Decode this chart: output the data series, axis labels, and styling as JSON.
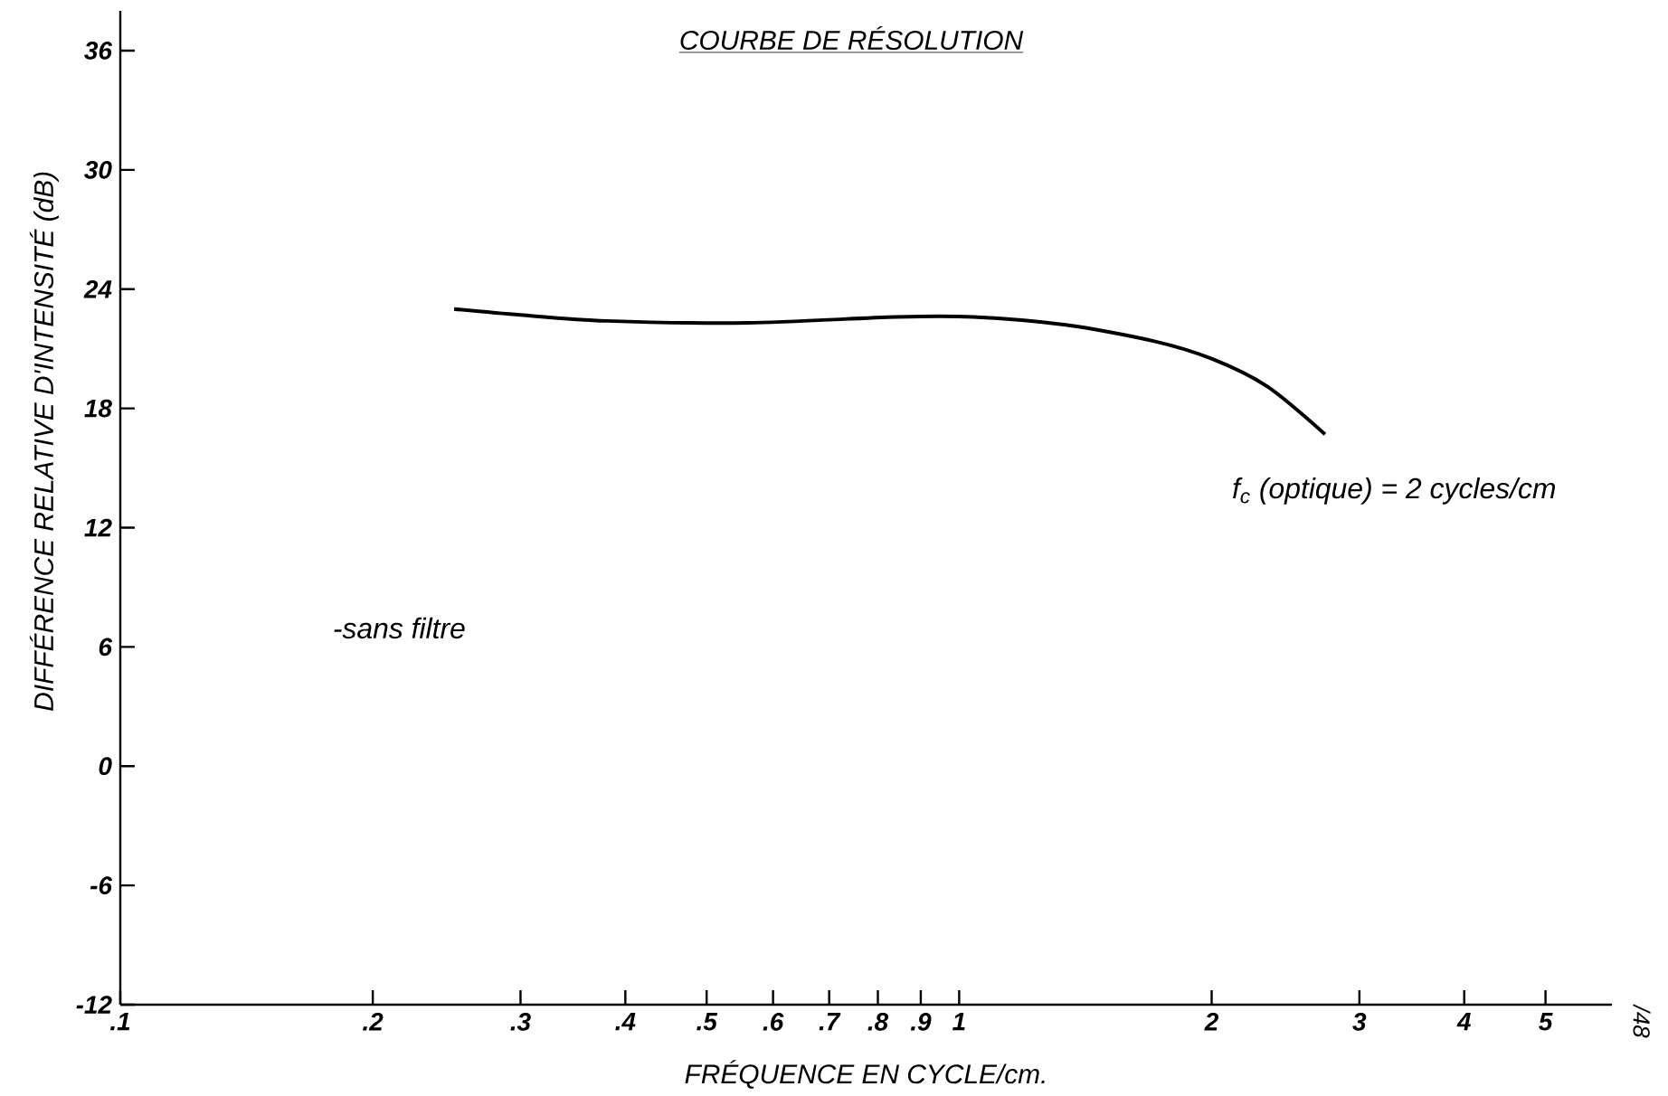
{
  "chart_data": {
    "type": "line",
    "title": "COURBE DE RÉSOLUTION",
    "xlabel": "FRÉQUENCE EN CYCLE/cm.",
    "ylabel": "DIFFÉRENCE RELATIVE D'INTENSITÉ (dB)",
    "log": "x",
    "xlim": [
      0.1,
      6
    ],
    "ylim": [
      -12,
      38
    ],
    "xticks": [
      {
        "value": 0.1,
        "label": ".1"
      },
      {
        "value": 0.2,
        "label": ".2"
      },
      {
        "value": 0.3,
        "label": ".3"
      },
      {
        "value": 0.4,
        "label": ".4"
      },
      {
        "value": 0.5,
        "label": ".5"
      },
      {
        "value": 0.6,
        "label": ".6"
      },
      {
        "value": 0.7,
        "label": ".7"
      },
      {
        "value": 0.8,
        "label": ".8"
      },
      {
        "value": 0.9,
        "label": ".9"
      },
      1,
      2,
      3,
      4,
      5
    ],
    "yticks": [
      -12,
      -6,
      0,
      6,
      12,
      18,
      24,
      30,
      36
    ],
    "series": [
      {
        "color": "#000000",
        "x": [
          0.25,
          0.3,
          0.38,
          0.56,
          0.84,
          1.04,
          1.34,
          1.7,
          2.0,
          2.33,
          2.73
        ],
        "values": [
          23.0,
          22.7,
          22.4,
          22.3,
          22.6,
          22.6,
          22.2,
          21.4,
          20.5,
          19.1,
          16.7
        ]
      }
    ],
    "annotations": [
      "f$_{c}$ (optique) = 2 cycles/cm",
      "-sans filtre",
      "/48"
    ]
  }
}
